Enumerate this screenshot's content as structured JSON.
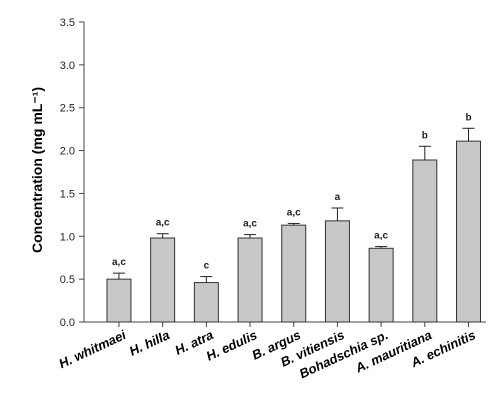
{
  "chart_data": {
    "type": "bar",
    "title": "",
    "xlabel": "",
    "ylabel": "Concentration (mg mL⁻¹)",
    "ylim": [
      0,
      3.5
    ],
    "yticks": [
      "0.0",
      "0.5",
      "1.0",
      "1.5",
      "2.0",
      "2.5",
      "3.0",
      "3.5"
    ],
    "grid": false,
    "categories": [
      "H. whitmaei",
      "H. hilla",
      "H. atra",
      "H. edulis",
      "B. argus",
      "B. vitiensis",
      "Bohadschia sp.",
      "A. mauritiana",
      "A. echinitis"
    ],
    "values": [
      0.5,
      0.98,
      0.46,
      0.98,
      1.13,
      1.18,
      0.86,
      1.89,
      2.11
    ],
    "errors": [
      0.07,
      0.05,
      0.07,
      0.04,
      0.02,
      0.15,
      0.02,
      0.16,
      0.15
    ],
    "significance": [
      "a,c",
      "a,c",
      "c",
      "a,c",
      "a,c",
      "a",
      "a,c",
      "b",
      "b"
    ],
    "colors": {
      "bar_fill": "#c8c8c8",
      "bar_stroke": "#333333",
      "axis": "#444444"
    }
  }
}
